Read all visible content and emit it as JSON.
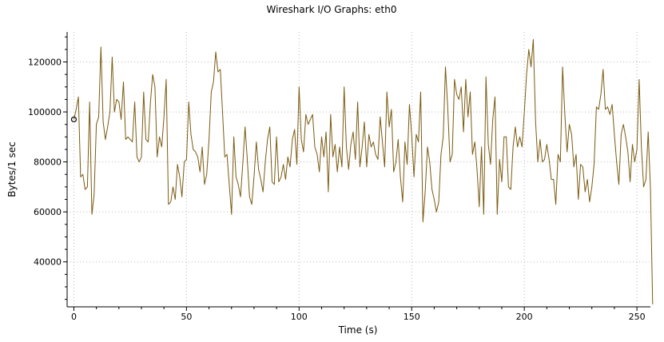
{
  "chart_data": {
    "type": "line",
    "title": "Wireshark I/O Graphs: eth0",
    "xlabel": "Time (s)",
    "ylabel": "Bytes/1 sec",
    "xlim": [
      -3,
      256
    ],
    "ylim": [
      22000,
      132000
    ],
    "x_ticks": [
      0,
      50,
      100,
      150,
      200,
      250
    ],
    "y_ticks": [
      40000,
      60000,
      80000,
      100000,
      120000
    ],
    "grid": true,
    "line_color": "#7a5a10",
    "marker": {
      "x": 0,
      "y": 97000,
      "shape": "circle-open"
    },
    "series": [
      {
        "x_start": 0,
        "x_step": 1,
        "values": [
          97000,
          101000,
          106000,
          74000,
          75000,
          69000,
          70000,
          104000,
          59000,
          67000,
          95000,
          98000,
          126000,
          96000,
          89000,
          94000,
          100000,
          122000,
          100000,
          105000,
          104000,
          97000,
          112000,
          89000,
          90000,
          89000,
          88000,
          104000,
          82000,
          80000,
          82000,
          108000,
          89000,
          88000,
          104000,
          115000,
          110000,
          82000,
          90000,
          86000,
          98000,
          113000,
          63000,
          64000,
          70000,
          65000,
          79000,
          74000,
          66000,
          80000,
          81000,
          104000,
          91000,
          85000,
          84000,
          82000,
          76000,
          86000,
          71000,
          75000,
          89000,
          108000,
          112000,
          124000,
          116000,
          117000,
          100000,
          82000,
          83000,
          71000,
          59000,
          90000,
          74000,
          71000,
          66000,
          79000,
          94000,
          81000,
          66000,
          63000,
          74000,
          88000,
          77000,
          73000,
          68000,
          80000,
          89000,
          94000,
          72000,
          71000,
          90000,
          72000,
          74000,
          79000,
          73000,
          82000,
          78000,
          89000,
          93000,
          79000,
          110000,
          89000,
          84000,
          99000,
          95000,
          97000,
          99000,
          86000,
          83000,
          76000,
          90000,
          82000,
          92000,
          68000,
          99000,
          82000,
          87000,
          76000,
          86000,
          78000,
          110000,
          86000,
          77000,
          87000,
          92000,
          81000,
          104000,
          78000,
          86000,
          96000,
          78000,
          91000,
          86000,
          88000,
          83000,
          81000,
          98000,
          88000,
          78000,
          108000,
          94000,
          101000,
          76000,
          80000,
          89000,
          74000,
          64000,
          88000,
          79000,
          103000,
          91000,
          74000,
          91000,
          88000,
          108000,
          56000,
          68000,
          86000,
          80000,
          69000,
          65000,
          60000,
          64000,
          83000,
          90000,
          118000,
          102000,
          80000,
          83000,
          113000,
          107000,
          105000,
          110000,
          92000,
          113000,
          98000,
          108000,
          83000,
          88000,
          77000,
          62000,
          86000,
          59000,
          114000,
          87000,
          79000,
          97000,
          106000,
          59000,
          81000,
          72000,
          90000,
          90000,
          70000,
          69000,
          86000,
          94000,
          86000,
          90000,
          86000,
          100000,
          115000,
          125000,
          118000,
          129000,
          96000,
          80000,
          89000,
          80000,
          81000,
          87000,
          81000,
          73000,
          73000,
          63000,
          83000,
          80000,
          118000,
          99000,
          84000,
          95000,
          91000,
          78000,
          83000,
          65000,
          79000,
          78000,
          68000,
          73000,
          64000,
          70000,
          79000,
          102000,
          101000,
          107000,
          117000,
          101000,
          102000,
          99000,
          103000,
          91000,
          80000,
          71000,
          91000,
          95000,
          90000,
          84000,
          72000,
          87000,
          80000,
          85000,
          113000,
          86000,
          70000,
          73000,
          92000,
          70000,
          23000
        ]
      }
    ]
  }
}
